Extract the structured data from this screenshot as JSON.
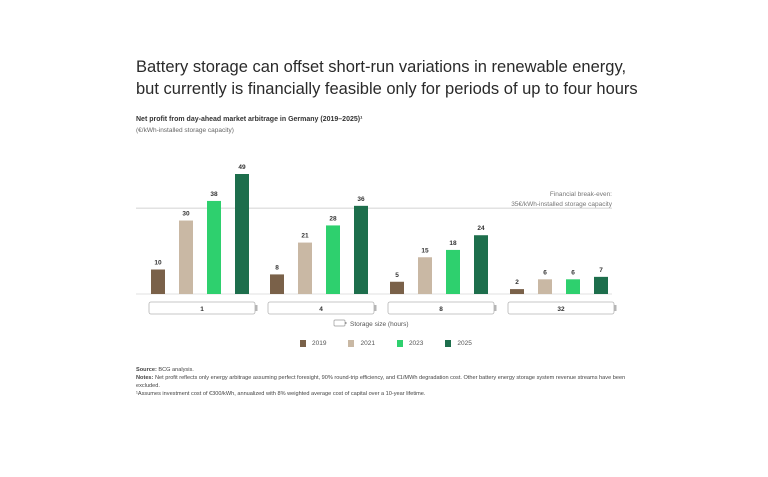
{
  "headline": {
    "line1": "Battery storage can offset short-run variations in renewable energy,",
    "line2": "but currently is financially feasible only for periods of up to four hours"
  },
  "subtitle": "Net profit from day-ahead market arbitrage in Germany (2019–2025)¹",
  "units": "(€/kWh-installed storage capacity)",
  "breakeven": {
    "line1": "Financial break-even:",
    "line2": "35€/kWh-installed storage capacity"
  },
  "storage_label": "Storage size (hours)",
  "notes": {
    "source_label": "Source:",
    "source_text": " BCG analysis.",
    "notes_label": "Notes:",
    "notes_text": " Net profit reflects only energy arbitrage assuming perfect foresight, 90% round-trip efficiency, and €1/MWh degradation cost. Other battery energy storage system revenue streams have been excluded.",
    "footnote": "¹Assumes investment cost of €300/kWh, annualized with 8% weighted average cost of capital over a 10-year lifetime."
  },
  "colors": {
    "2019": "#7a6149",
    "2021": "#c9b8a4",
    "2023": "#2ed06e",
    "2025": "#1d6e4c"
  },
  "chart_data": {
    "type": "bar",
    "categories": [
      "1",
      "4",
      "8",
      "32"
    ],
    "series": [
      {
        "name": "2019",
        "values": [
          10,
          8,
          5,
          2
        ]
      },
      {
        "name": "2021",
        "values": [
          30,
          21,
          15,
          6
        ]
      },
      {
        "name": "2023",
        "values": [
          38,
          28,
          18,
          6
        ]
      },
      {
        "name": "2025",
        "values": [
          49,
          36,
          24,
          7
        ]
      }
    ],
    "reference_line": 35,
    "ylim": [
      0,
      50
    ],
    "grid": false,
    "legend": "bottom"
  }
}
